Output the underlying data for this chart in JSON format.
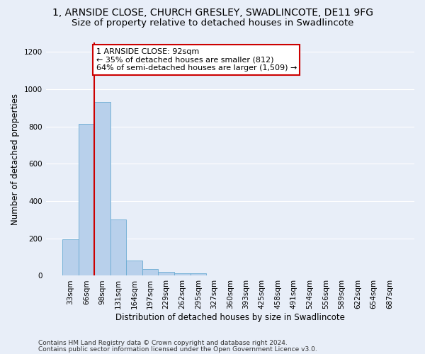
{
  "title_line1": "1, ARNSIDE CLOSE, CHURCH GRESLEY, SWADLINCOTE, DE11 9FG",
  "title_line2": "Size of property relative to detached houses in Swadlincote",
  "xlabel": "Distribution of detached houses by size in Swadlincote",
  "ylabel": "Number of detached properties",
  "bin_labels": [
    "33sqm",
    "66sqm",
    "98sqm",
    "131sqm",
    "164sqm",
    "197sqm",
    "229sqm",
    "262sqm",
    "295sqm",
    "327sqm",
    "360sqm",
    "393sqm",
    "425sqm",
    "458sqm",
    "491sqm",
    "524sqm",
    "556sqm",
    "589sqm",
    "622sqm",
    "654sqm",
    "687sqm"
  ],
  "bar_values": [
    197,
    812,
    930,
    300,
    82,
    35,
    20,
    15,
    12,
    0,
    0,
    0,
    0,
    0,
    0,
    0,
    0,
    0,
    0,
    0,
    0
  ],
  "bar_color": "#b8d0eb",
  "bar_edge_color": "#6aabd2",
  "background_color": "#e8eef8",
  "grid_color": "#ffffff",
  "annotation_text": "1 ARNSIDE CLOSE: 92sqm\n← 35% of detached houses are smaller (812)\n64% of semi-detached houses are larger (1,509) →",
  "annotation_box_color": "#ffffff",
  "annotation_box_edge": "#cc0000",
  "vline_color": "#cc0000",
  "ylim": [
    0,
    1250
  ],
  "yticks": [
    0,
    200,
    400,
    600,
    800,
    1000,
    1200
  ],
  "footer_line1": "Contains HM Land Registry data © Crown copyright and database right 2024.",
  "footer_line2": "Contains public sector information licensed under the Open Government Licence v3.0.",
  "title_fontsize": 10,
  "subtitle_fontsize": 9.5,
  "axis_label_fontsize": 8.5,
  "tick_fontsize": 7.5,
  "annotation_fontsize": 8,
  "footer_fontsize": 6.5
}
